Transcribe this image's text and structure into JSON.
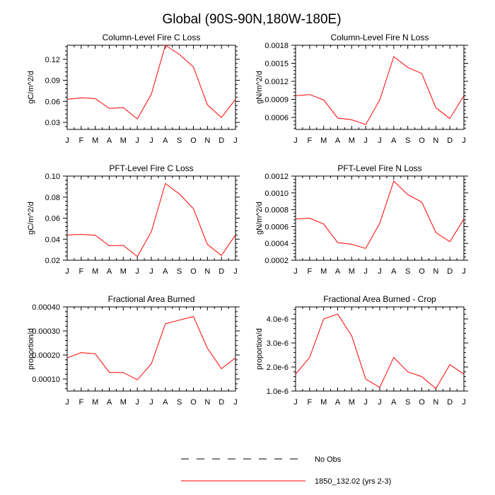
{
  "figure_title": "Global (90S-90N,180W-180E)",
  "legend": {
    "entries": [
      {
        "label": "No Obs",
        "color": "#000000",
        "style": "dashed"
      },
      {
        "label": "1850_132.02 (yrs 2-3)",
        "color": "#ff0000",
        "style": "solid"
      }
    ]
  },
  "chart_data": [
    {
      "type": "line",
      "title": "Column-Level Fire C Loss",
      "xlabel": "",
      "ylabel": "gC/m^2/d",
      "categories": [
        "J",
        "F",
        "M",
        "A",
        "M",
        "J",
        "J",
        "A",
        "S",
        "O",
        "N",
        "D",
        "J"
      ],
      "ylim": [
        0.02,
        0.14
      ],
      "yticks": [
        0.03,
        0.06,
        0.09,
        0.12
      ],
      "ytick_labels": [
        "0.03",
        "0.06",
        "0.09",
        "0.12"
      ],
      "series": [
        {
          "name": "1850_132.02 (yrs 2-3)",
          "color": "#ff0000",
          "values": [
            0.063,
            0.065,
            0.064,
            0.05,
            0.051,
            0.035,
            0.07,
            0.14,
            0.127,
            0.109,
            0.055,
            0.037,
            0.063
          ]
        }
      ]
    },
    {
      "type": "line",
      "title": "Column-Level Fire N Loss",
      "xlabel": "",
      "ylabel": "gN/m^2/d",
      "categories": [
        "J",
        "F",
        "M",
        "A",
        "M",
        "J",
        "J",
        "A",
        "S",
        "O",
        "N",
        "D",
        "J"
      ],
      "ylim": [
        0.0004,
        0.0018
      ],
      "yticks": [
        0.0006,
        0.0009,
        0.0012,
        0.0015,
        0.0018
      ],
      "ytick_labels": [
        "0.0006",
        "0.0009",
        "0.0012",
        "0.0015",
        "0.0018"
      ],
      "series": [
        {
          "name": "1850_132.02 (yrs 2-3)",
          "color": "#ff0000",
          "values": [
            0.00096,
            0.00098,
            0.00089,
            0.00059,
            0.00056,
            0.00048,
            0.00089,
            0.00161,
            0.00143,
            0.00133,
            0.00076,
            0.00058,
            0.00096
          ]
        }
      ]
    },
    {
      "type": "line",
      "title": "PFT-Level Fire C Loss",
      "xlabel": "",
      "ylabel": "gC/m^2/d",
      "categories": [
        "J",
        "F",
        "M",
        "A",
        "M",
        "J",
        "J",
        "A",
        "S",
        "O",
        "N",
        "D",
        "J"
      ],
      "ylim": [
        0.02,
        0.1
      ],
      "yticks": [
        0.02,
        0.04,
        0.06,
        0.08,
        0.1
      ],
      "ytick_labels": [
        "0.02",
        "0.04",
        "0.06",
        "0.08",
        "0.10"
      ],
      "series": [
        {
          "name": "1850_132.02 (yrs 2-3)",
          "color": "#ff0000",
          "values": [
            0.044,
            0.0445,
            0.0438,
            0.0338,
            0.0341,
            0.0235,
            0.047,
            0.093,
            0.083,
            0.069,
            0.035,
            0.0245,
            0.044
          ]
        }
      ]
    },
    {
      "type": "line",
      "title": "PFT-Level Fire N Loss",
      "xlabel": "",
      "ylabel": "gN/m^2/d",
      "categories": [
        "J",
        "F",
        "M",
        "A",
        "M",
        "J",
        "J",
        "A",
        "S",
        "O",
        "N",
        "D",
        "J"
      ],
      "ylim": [
        0.0002,
        0.0012
      ],
      "yticks": [
        0.0002,
        0.0004,
        0.0006,
        0.0008,
        0.001,
        0.0012
      ],
      "ytick_labels": [
        "0.0002",
        "0.0004",
        "0.0006",
        "0.0008",
        "0.0010",
        "0.0012"
      ],
      "series": [
        {
          "name": "1850_132.02 (yrs 2-3)",
          "color": "#ff0000",
          "values": [
            0.00069,
            0.0007,
            0.00063,
            0.00041,
            0.00039,
            0.00034,
            0.00064,
            0.00114,
            0.00098,
            0.00089,
            0.00053,
            0.00042,
            0.00069
          ]
        }
      ]
    },
    {
      "type": "line",
      "title": "Fractional Area Burned",
      "xlabel": "",
      "ylabel": "proportion/d",
      "categories": [
        "J",
        "F",
        "M",
        "A",
        "M",
        "J",
        "J",
        "A",
        "S",
        "O",
        "N",
        "D",
        "J"
      ],
      "ylim": [
        5e-05,
        0.0004
      ],
      "yticks": [
        0.0001,
        0.0002,
        0.0003,
        0.0004
      ],
      "ytick_labels": [
        "0.00010",
        "0.00020",
        "0.00030",
        "0.00040"
      ],
      "series": [
        {
          "name": "1850_132.02 (yrs 2-3)",
          "color": "#ff0000",
          "values": [
            0.000188,
            0.00021,
            0.000205,
            0.000128,
            0.000127,
            9.7e-05,
            0.000163,
            0.00033,
            0.000345,
            0.00036,
            0.000228,
            0.000143,
            0.000188
          ]
        }
      ]
    },
    {
      "type": "line",
      "title": "Fractional Area Burned - Crop",
      "xlabel": "",
      "ylabel": "proportion/d",
      "categories": [
        "J",
        "F",
        "M",
        "A",
        "M",
        "J",
        "J",
        "A",
        "S",
        "O",
        "N",
        "D",
        "J"
      ],
      "ylim": [
        1e-06,
        4.5e-06
      ],
      "yticks": [
        1e-06,
        2e-06,
        3e-06,
        4e-06
      ],
      "ytick_labels": [
        "1.0e-6",
        "2.0e-6",
        "3.0e-6",
        "4.0e-6"
      ],
      "series": [
        {
          "name": "1850_132.02 (yrs 2-3)",
          "color": "#ff0000",
          "values": [
            1.7e-06,
            2.4e-06,
            4e-06,
            4.2e-06,
            3.3e-06,
            1.5e-06,
            1.15e-06,
            2.4e-06,
            1.8e-06,
            1.6e-06,
            1.1e-06,
            2.1e-06,
            1.7e-06
          ]
        }
      ]
    }
  ]
}
